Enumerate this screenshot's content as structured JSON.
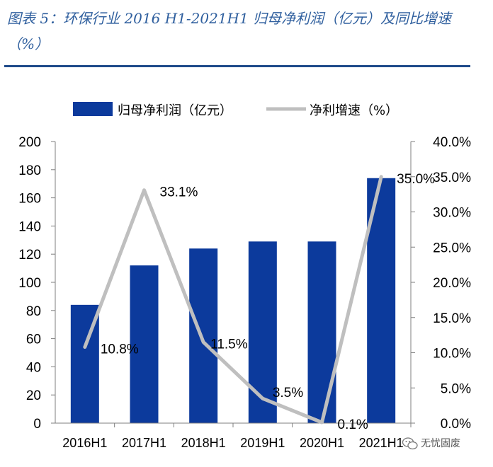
{
  "figure": {
    "title": "图表 5：环保行业 2016 H1-2021H1 归母净利润（亿元）及同比增速（%）"
  },
  "chart_data": {
    "type": "bar",
    "categories": [
      "2016H1",
      "2017H1",
      "2018H1",
      "2019H1",
      "2020H1",
      "2021H1"
    ],
    "series": [
      {
        "name": "归母净利润（亿元）",
        "type": "bar",
        "axis": "left",
        "color": "#0c3a9c",
        "values": [
          84,
          112,
          124,
          129,
          129,
          174
        ]
      },
      {
        "name": "净利增速（%）",
        "type": "line",
        "axis": "right",
        "color": "#bfbfbf",
        "values": [
          10.8,
          33.1,
          11.5,
          3.5,
          0.1,
          35.0
        ],
        "labels": [
          "10.8%",
          "33.1%",
          "11.5%",
          "3.5%",
          "0.1%",
          "35.0%"
        ]
      }
    ],
    "y_left": {
      "ylim": [
        0,
        200
      ],
      "ticks": [
        "0",
        "20",
        "40",
        "60",
        "80",
        "100",
        "120",
        "140",
        "160",
        "180",
        "200"
      ]
    },
    "y_right": {
      "ylim": [
        0,
        40
      ],
      "ticks": [
        "0.0%",
        "5.0%",
        "10.0%",
        "15.0%",
        "20.0%",
        "25.0%",
        "30.0%",
        "35.0%",
        "40.0%"
      ]
    },
    "legend_position": "top"
  },
  "watermark": {
    "text": "无忧固废",
    "icon": "wechat-icon"
  }
}
